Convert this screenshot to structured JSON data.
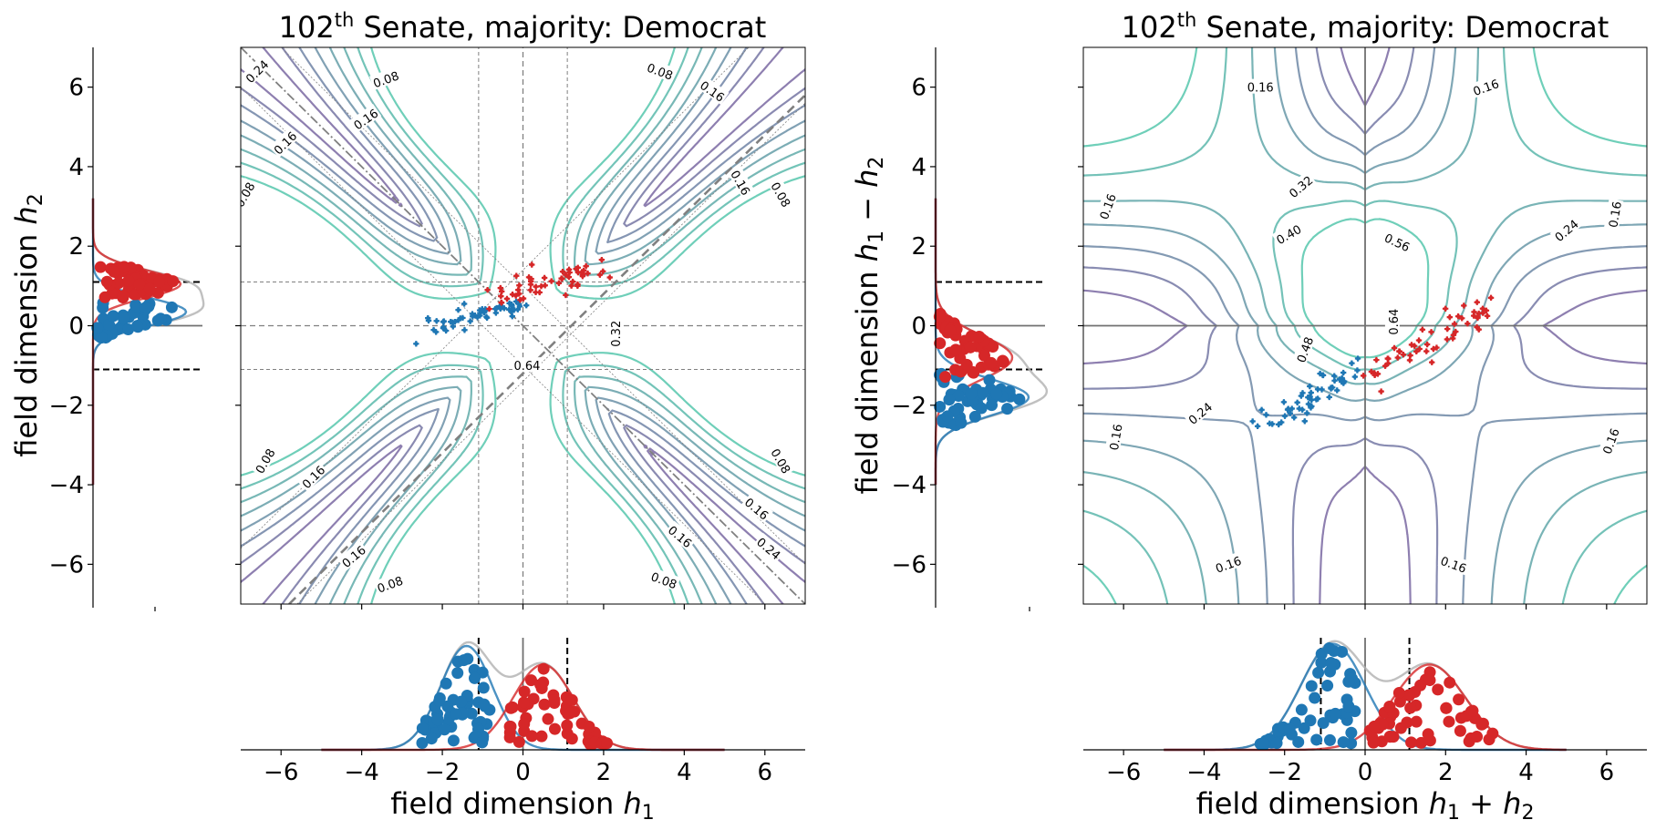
{
  "colors": {
    "democrat": "#1f77b4",
    "republican": "#d62728",
    "axis": "#000000",
    "guide": "#808080",
    "contour_low": "#8e7fb0",
    "contour_high": "#6fcfb9",
    "kde_total": "#b0b0b0"
  },
  "chart_data": [
    {
      "id": "left",
      "type": "scatter",
      "title_prefix": "102",
      "title_sup": "th",
      "title_rest": " Senate, majority: Democrat",
      "xlabel_prefix": "field dimension ",
      "xlabel_var": "h",
      "xlabel_sub": "1",
      "ylabel_prefix": "field dimension ",
      "ylabel_var": "h",
      "ylabel_sub": "2",
      "xlim": [
        -7,
        7
      ],
      "ylim": [
        -7,
        7
      ],
      "xticks": [
        "−6",
        "−4",
        "−2",
        "0",
        "2",
        "4",
        "6"
      ],
      "yticks": [
        "6",
        "4",
        "2",
        "0",
        "−2",
        "−4",
        "−6"
      ],
      "threshold": 1.1,
      "contour_labels": [
        {
          "text": "0.08",
          "x": -3.4,
          "y": 6.2,
          "rot": -20
        },
        {
          "text": "0.08",
          "x": 3.4,
          "y": 6.4,
          "rot": 20
        },
        {
          "text": "0.16",
          "x": -3.9,
          "y": 5.2,
          "rot": -35
        },
        {
          "text": "0.16",
          "x": 4.7,
          "y": 5.9,
          "rot": 35
        },
        {
          "text": "0.24",
          "x": -6.6,
          "y": 6.4,
          "rot": -45
        },
        {
          "text": "0.16",
          "x": -5.9,
          "y": 4.6,
          "rot": -45
        },
        {
          "text": "0.08",
          "x": -6.9,
          "y": 3.3,
          "rot": -60
        },
        {
          "text": "0.16",
          "x": 5.4,
          "y": 3.6,
          "rot": 60
        },
        {
          "text": "0.08",
          "x": 6.4,
          "y": 3.3,
          "rot": 60
        },
        {
          "text": "0.32",
          "x": 2.3,
          "y": -0.2,
          "rot": -90
        },
        {
          "text": "0.64",
          "x": 0.1,
          "y": -1.0,
          "rot": 0
        },
        {
          "text": "0.08",
          "x": -6.4,
          "y": -3.4,
          "rot": -60
        },
        {
          "text": "0.16",
          "x": -5.2,
          "y": -3.8,
          "rot": -45
        },
        {
          "text": "0.16",
          "x": -4.2,
          "y": -5.8,
          "rot": -40
        },
        {
          "text": "0.08",
          "x": -3.3,
          "y": -6.5,
          "rot": -20
        },
        {
          "text": "0.08",
          "x": 6.4,
          "y": -3.4,
          "rot": 60
        },
        {
          "text": "0.16",
          "x": 5.8,
          "y": -4.6,
          "rot": 40
        },
        {
          "text": "0.16",
          "x": 3.9,
          "y": -5.3,
          "rot": 40
        },
        {
          "text": "0.24",
          "x": 6.1,
          "y": -5.6,
          "rot": 40
        },
        {
          "text": "0.08",
          "x": 3.5,
          "y": -6.4,
          "rot": 20
        }
      ]
    },
    {
      "id": "right",
      "type": "scatter",
      "title_prefix": "102",
      "title_sup": "th",
      "title_rest": " Senate, majority: Democrat",
      "xlabel_prefix": "field dimension ",
      "xlabel_var": "h",
      "xlabel_sub": "1",
      "xlabel_mid": " + ",
      "xlabel_var2": "h",
      "xlabel_sub2": "2",
      "ylabel_prefix": "field dimension ",
      "ylabel_var": "h",
      "ylabel_sub": "1",
      "ylabel_mid": " − ",
      "ylabel_var2": "h",
      "ylabel_sub2": "2",
      "xlim": [
        -7,
        7
      ],
      "ylim": [
        -7,
        7
      ],
      "xticks": [
        "−6",
        "−4",
        "−2",
        "0",
        "2",
        "4",
        "6"
      ],
      "yticks": [
        "6",
        "4",
        "2",
        "0",
        "−2",
        "−4",
        "−6"
      ],
      "threshold": 1.1,
      "contour_labels": [
        {
          "text": "0.16",
          "x": -2.6,
          "y": 6.0,
          "rot": 0
        },
        {
          "text": "0.16",
          "x": 3.0,
          "y": 6.0,
          "rot": -20
        },
        {
          "text": "0.32",
          "x": -1.6,
          "y": 3.5,
          "rot": -40
        },
        {
          "text": "0.40",
          "x": -1.9,
          "y": 2.3,
          "rot": -30
        },
        {
          "text": "0.56",
          "x": 0.8,
          "y": 2.1,
          "rot": 25
        },
        {
          "text": "0.64",
          "x": 0.7,
          "y": 0.1,
          "rot": -90
        },
        {
          "text": "0.48",
          "x": -1.5,
          "y": -0.6,
          "rot": -70
        },
        {
          "text": "0.24",
          "x": -4.1,
          "y": -2.2,
          "rot": -40
        },
        {
          "text": "0.24",
          "x": 5.0,
          "y": 2.4,
          "rot": -40
        },
        {
          "text": "0.16",
          "x": -6.4,
          "y": 3.0,
          "rot": -70
        },
        {
          "text": "0.16",
          "x": 6.2,
          "y": 2.8,
          "rot": -80
        },
        {
          "text": "0.16",
          "x": -6.2,
          "y": -2.8,
          "rot": -80
        },
        {
          "text": "0.16",
          "x": 6.1,
          "y": -2.9,
          "rot": -70
        },
        {
          "text": "0.16",
          "x": -3.4,
          "y": -6.0,
          "rot": -20
        },
        {
          "text": "0.16",
          "x": 2.2,
          "y": -6.0,
          "rot": 20
        }
      ]
    }
  ]
}
